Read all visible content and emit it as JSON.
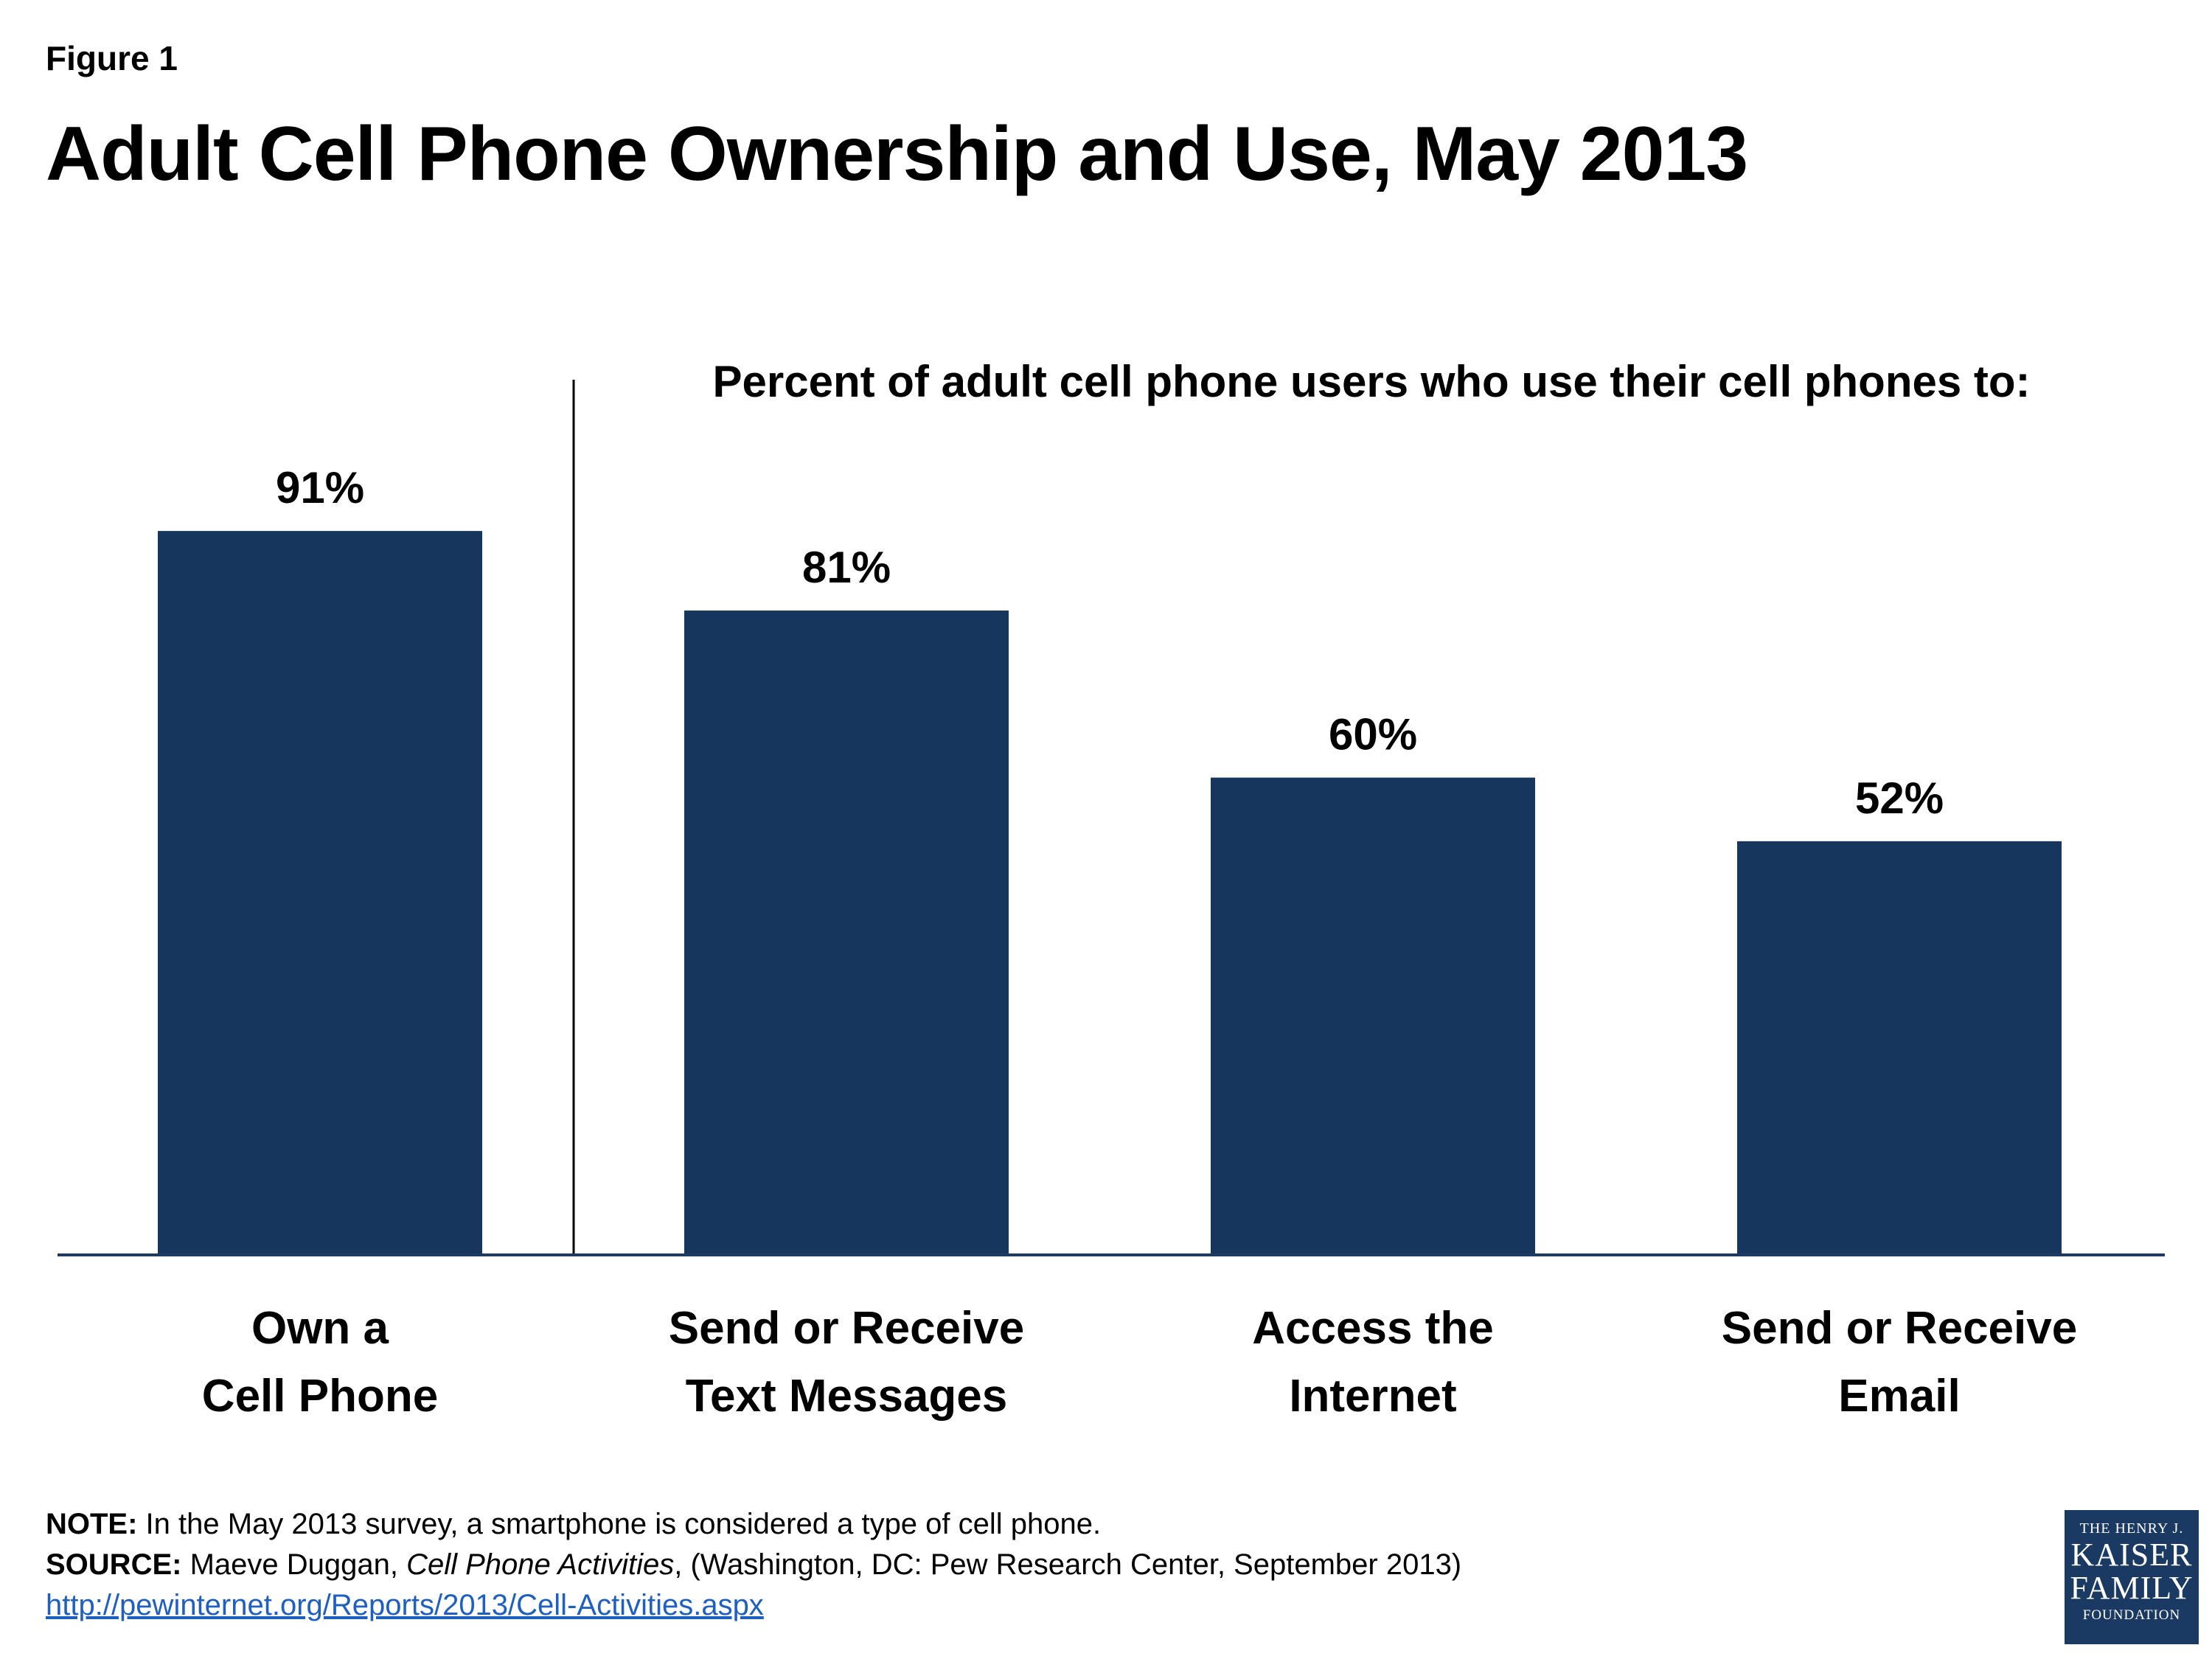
{
  "header": {
    "figure_label": "Figure 1",
    "title": "Adult Cell Phone Ownership and Use, May 2013"
  },
  "chart_data": {
    "type": "bar",
    "subtitle": "Percent  of adult cell phone users  who use their cell phones to:",
    "categories": [
      [
        "Own a",
        "Cell Phone"
      ],
      [
        "Send or Receive",
        "Text Messages"
      ],
      [
        "Access the",
        "Internet"
      ],
      [
        "Send or Receive",
        "Email"
      ]
    ],
    "values": [
      91,
      81,
      60,
      52
    ],
    "data_labels": [
      "91%",
      "81%",
      "60%",
      "52%"
    ],
    "bar_color": "#17365d",
    "axis_color": "#1f3a60",
    "divider_after_category": 0,
    "ylim": [
      0,
      100
    ],
    "grid": false
  },
  "footer": {
    "note_label": "NOTE:",
    "note_text": " In the May 2013 survey, a smartphone is considered a type of cell phone.",
    "source_label": "SOURCE:",
    "source_author": " Maeve Duggan, ",
    "source_title": "Cell Phone Activities",
    "source_rest": ", (Washington, DC: Pew Research Center, September 2013)",
    "url": "http://pewinternet.org/Reports/2013/Cell-Activities.aspx"
  },
  "logo": {
    "line1": "THE HENRY J.",
    "line2": "KAISER",
    "line3": "FAMILY",
    "line4": "FOUNDATION",
    "background": "#1a3a63"
  }
}
